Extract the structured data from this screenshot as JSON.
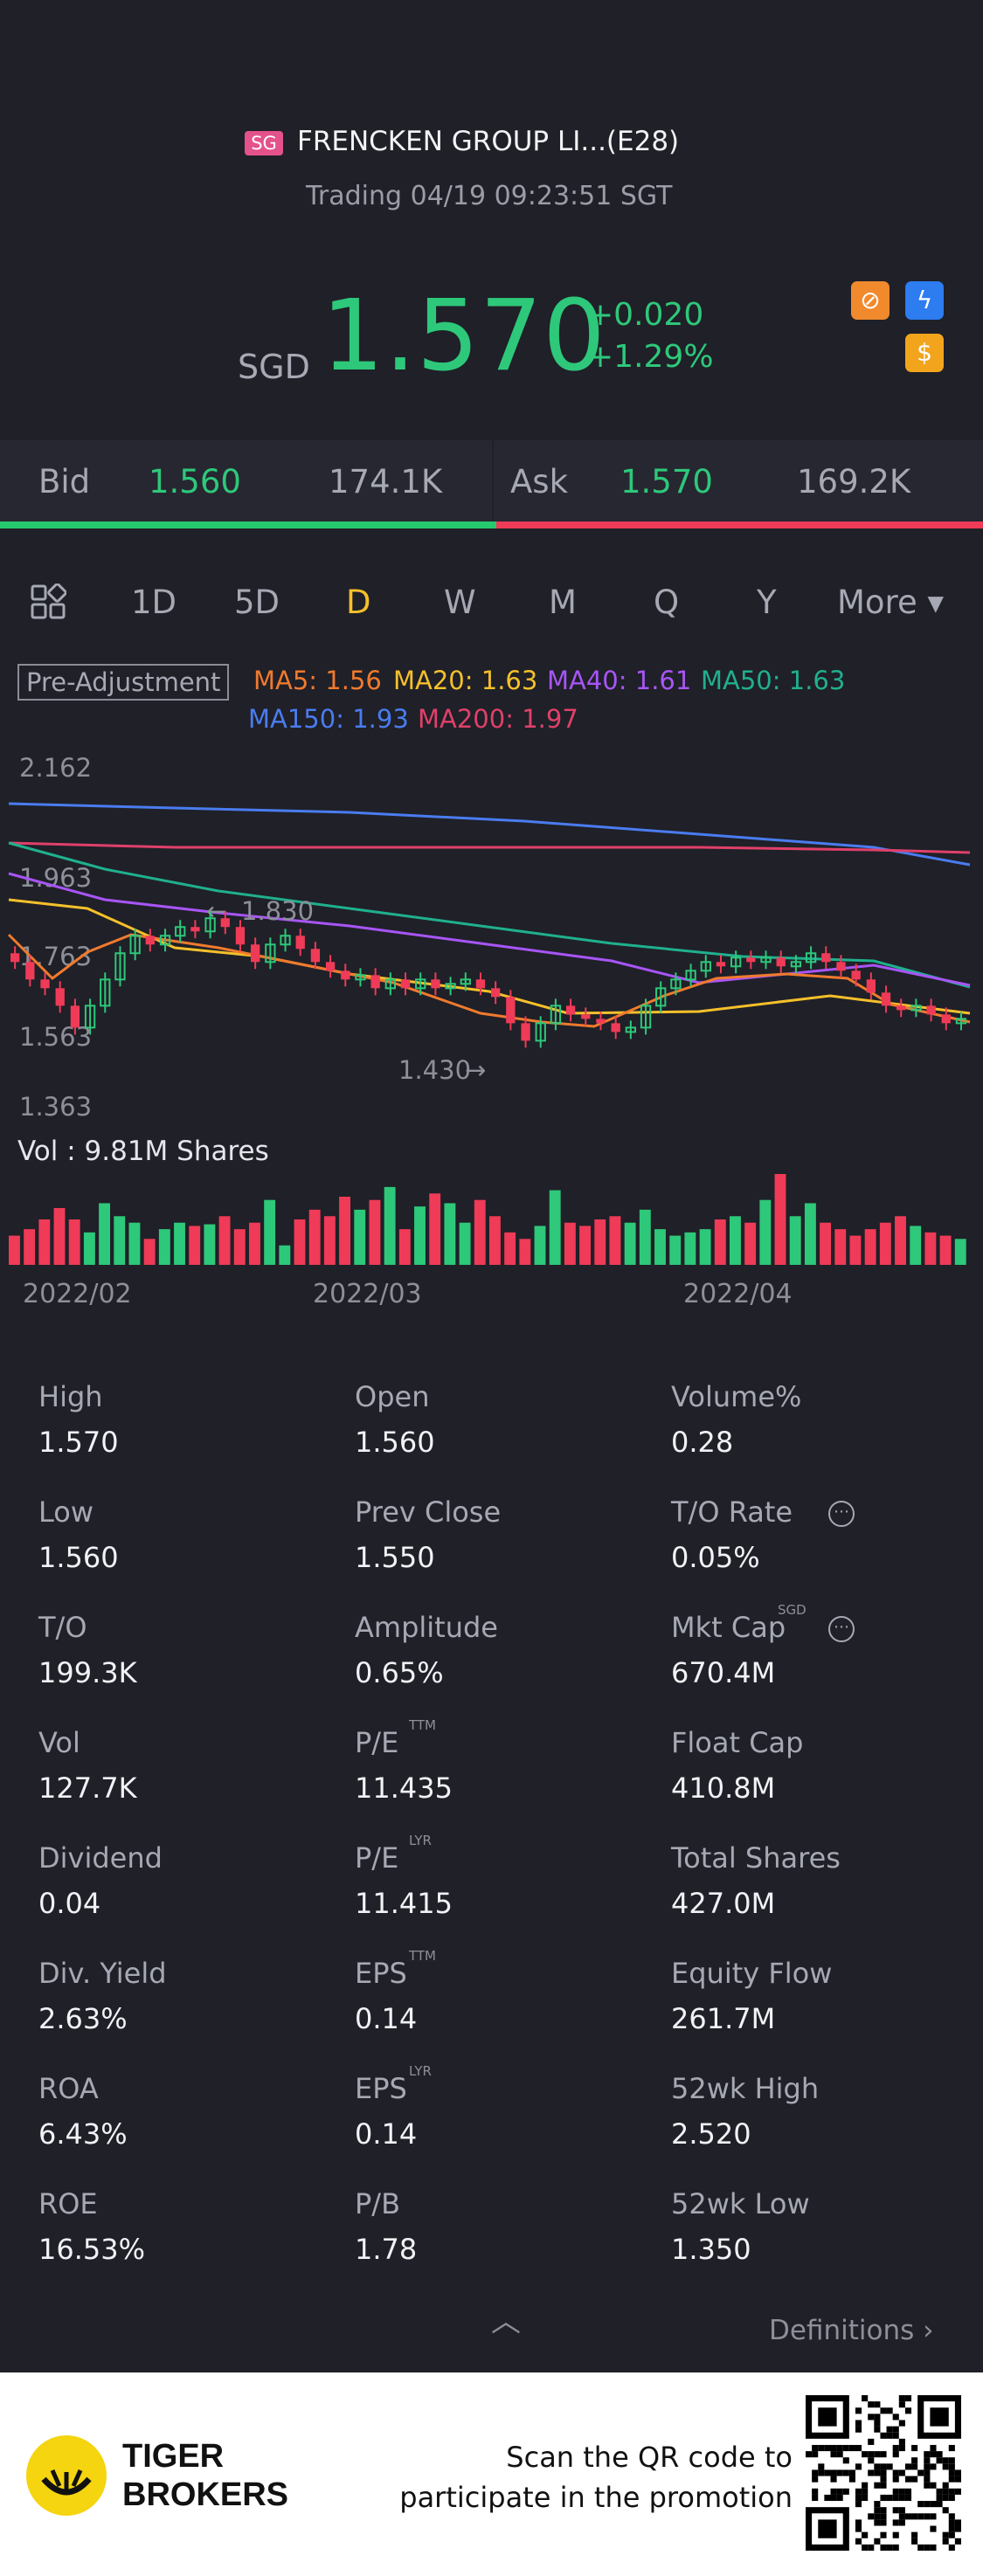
{
  "header": {
    "market_badge": "SG",
    "title": "FRENCKEN GROUP LI...(E28)",
    "status": "Trading 04/19 09:23:51 SGT",
    "currency": "SGD",
    "price": "1.570",
    "change": "+0.020",
    "change_pct": "+1.29%",
    "icons": [
      "no-short-icon",
      "bolt-icon",
      "dollar-icon"
    ]
  },
  "quote": {
    "bid_label": "Bid",
    "bid_price": "1.560",
    "bid_size": "174.1K",
    "ask_label": "Ask",
    "ask_price": "1.570",
    "ask_size": "169.2K"
  },
  "tabs": {
    "items": [
      "1D",
      "5D",
      "D",
      "W",
      "M",
      "Q",
      "Y",
      "More ▾"
    ],
    "active": "D"
  },
  "chart_labels": {
    "pre_adjustment": "Pre-Adjustment",
    "ma5": "MA5: 1.56",
    "ma20": "MA20: 1.63",
    "ma40": "MA40: 1.61",
    "ma50": "MA50: 1.63",
    "ma150": "MA150: 1.93",
    "ma200": "MA200: 1.97",
    "y_ticks": [
      "2.162",
      "1.963",
      "1.763",
      "1.563",
      "1.363"
    ],
    "high_marker": "1.830",
    "low_marker": "1.430",
    "volume": "Vol  : 9.81M Shares",
    "dates": [
      "2022/02",
      "2022/03",
      "2022/04"
    ]
  },
  "colors": {
    "up": "#2ec87a",
    "down": "#ef3b57",
    "ma5": "#f07a2d",
    "ma20": "#f5c02a",
    "ma40": "#a855f7",
    "ma50": "#20b08e",
    "ma150": "#4a7cf0",
    "ma200": "#e0406a"
  },
  "chart_data": {
    "type": "candlestick",
    "ylim": [
      1.363,
      2.162
    ],
    "high": 1.83,
    "low": 1.43,
    "candles": [
      [
        1.72,
        1.7
      ],
      [
        1.7,
        1.66
      ],
      [
        1.66,
        1.64
      ],
      [
        1.64,
        1.6
      ],
      [
        1.6,
        1.55
      ],
      [
        1.55,
        1.6
      ],
      [
        1.6,
        1.66
      ],
      [
        1.66,
        1.72
      ],
      [
        1.72,
        1.76
      ],
      [
        1.76,
        1.74
      ],
      [
        1.74,
        1.76
      ],
      [
        1.76,
        1.78
      ],
      [
        1.78,
        1.77
      ],
      [
        1.77,
        1.8
      ],
      [
        1.8,
        1.78
      ],
      [
        1.78,
        1.74
      ],
      [
        1.74,
        1.7
      ],
      [
        1.7,
        1.74
      ],
      [
        1.74,
        1.76
      ],
      [
        1.76,
        1.73
      ],
      [
        1.73,
        1.7
      ],
      [
        1.7,
        1.68
      ],
      [
        1.68,
        1.66
      ],
      [
        1.66,
        1.67
      ],
      [
        1.67,
        1.64
      ],
      [
        1.64,
        1.66
      ],
      [
        1.66,
        1.64
      ],
      [
        1.64,
        1.66
      ],
      [
        1.66,
        1.64
      ],
      [
        1.64,
        1.65
      ],
      [
        1.65,
        1.66
      ],
      [
        1.66,
        1.64
      ],
      [
        1.64,
        1.62
      ],
      [
        1.62,
        1.56
      ],
      [
        1.56,
        1.52
      ],
      [
        1.52,
        1.56
      ],
      [
        1.56,
        1.6
      ],
      [
        1.6,
        1.58
      ],
      [
        1.58,
        1.57
      ],
      [
        1.57,
        1.56
      ],
      [
        1.56,
        1.54
      ],
      [
        1.54,
        1.55
      ],
      [
        1.55,
        1.6
      ],
      [
        1.6,
        1.64
      ],
      [
        1.64,
        1.66
      ],
      [
        1.66,
        1.68
      ],
      [
        1.68,
        1.7
      ],
      [
        1.7,
        1.69
      ],
      [
        1.69,
        1.71
      ],
      [
        1.71,
        1.7
      ],
      [
        1.7,
        1.71
      ],
      [
        1.71,
        1.69
      ],
      [
        1.69,
        1.7
      ],
      [
        1.7,
        1.72
      ],
      [
        1.72,
        1.7
      ],
      [
        1.7,
        1.68
      ],
      [
        1.68,
        1.66
      ],
      [
        1.66,
        1.63
      ],
      [
        1.63,
        1.6
      ],
      [
        1.6,
        1.59
      ],
      [
        1.59,
        1.6
      ],
      [
        1.6,
        1.58
      ],
      [
        1.58,
        1.56
      ],
      [
        1.56,
        1.57
      ]
    ],
    "volumes": [
      18,
      22,
      28,
      35,
      28,
      20,
      38,
      30,
      26,
      16,
      22,
      26,
      24,
      25,
      30,
      22,
      26,
      40,
      12,
      28,
      34,
      30,
      42,
      34,
      40,
      48,
      22,
      36,
      44,
      38,
      26,
      40,
      30,
      20,
      16,
      24,
      46,
      26,
      24,
      28,
      30,
      26,
      34,
      22,
      18,
      20,
      22,
      28,
      30,
      26,
      40,
      56,
      30,
      38,
      26,
      22,
      18,
      22,
      26,
      30,
      24,
      20,
      18,
      16
    ]
  },
  "stats": {
    "col1": [
      {
        "name": "High",
        "value": "1.570"
      },
      {
        "name": "Low",
        "value": "1.560"
      },
      {
        "name": "T/O",
        "value": "199.3K"
      },
      {
        "name": "Vol",
        "value": "127.7K"
      },
      {
        "name": "Dividend",
        "value": "0.04"
      },
      {
        "name": "Div. Yield",
        "value": "2.63%"
      },
      {
        "name": "ROA",
        "value": "6.43%"
      },
      {
        "name": "ROE",
        "value": "16.53%"
      }
    ],
    "col2": [
      {
        "name": "Open",
        "value": "1.560",
        "sup": ""
      },
      {
        "name": "Prev Close",
        "value": "1.550",
        "sup": ""
      },
      {
        "name": "Amplitude",
        "value": "0.65%",
        "sup": ""
      },
      {
        "name": "P/E",
        "value": "11.435",
        "sup": "TTM"
      },
      {
        "name": "P/E",
        "value": "11.415",
        "sup": "LYR"
      },
      {
        "name": "EPS",
        "value": "0.14",
        "sup": "TTM"
      },
      {
        "name": "EPS",
        "value": "0.14",
        "sup": "LYR"
      },
      {
        "name": "P/B",
        "value": "1.78",
        "sup": ""
      }
    ],
    "col3": [
      {
        "name": "Volume%",
        "value": "0.28",
        "sup": ""
      },
      {
        "name": "T/O Rate",
        "value": "0.05%",
        "sup": ""
      },
      {
        "name": "Mkt Cap",
        "value": "670.4M",
        "sup": "SGD"
      },
      {
        "name": "Float Cap",
        "value": "410.8M",
        "sup": ""
      },
      {
        "name": "Total Shares",
        "value": "427.0M",
        "sup": ""
      },
      {
        "name": "Equity Flow",
        "value": "261.7M",
        "sup": ""
      },
      {
        "name": "52wk High",
        "value": "2.520",
        "sup": ""
      },
      {
        "name": "52wk Low",
        "value": "1.350",
        "sup": ""
      }
    ],
    "definitions": "Definitions"
  },
  "footer": {
    "brand_line1": "TIGER",
    "brand_line2": "BROKERS",
    "promo_line1": "Scan the QR code to",
    "promo_line2": "participate in the promotion"
  }
}
